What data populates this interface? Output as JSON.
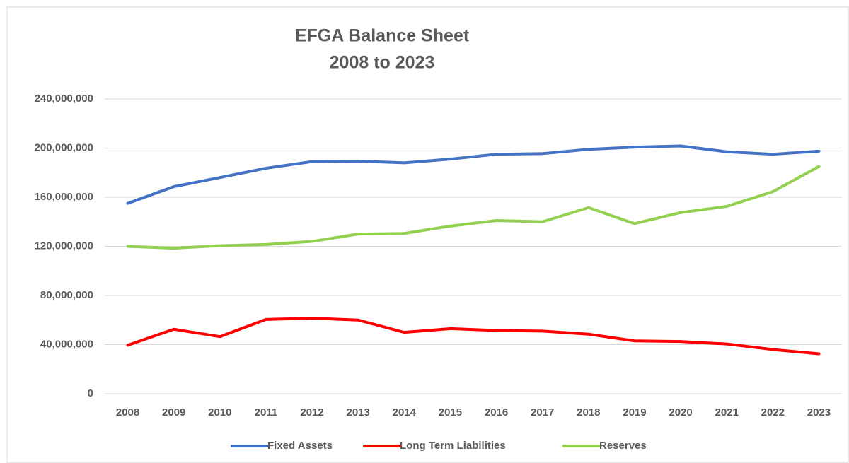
{
  "chart_data": {
    "type": "line",
    "title": "EFGA Balance Sheet",
    "subtitle": "2008 to 2023",
    "categories": [
      "2008",
      "2009",
      "2010",
      "2011",
      "2012",
      "2013",
      "2014",
      "2015",
      "2016",
      "2017",
      "2018",
      "2019",
      "2020",
      "2021",
      "2022",
      "2023"
    ],
    "series": [
      {
        "name": "Fixed Assets",
        "color": "#4472c4",
        "values": [
          155000000,
          168600000,
          176000000,
          183600000,
          189000000,
          189400000,
          188000000,
          191000000,
          195000000,
          195500000,
          199000000,
          200800000,
          201700000,
          197000000,
          195000000,
          197500000
        ]
      },
      {
        "name": "Long Term Liabilities",
        "color": "#ff0000",
        "values": [
          39500000,
          52500000,
          46500000,
          60500000,
          61500000,
          60000000,
          50000000,
          53000000,
          51500000,
          51000000,
          48500000,
          43000000,
          42500000,
          40500000,
          36000000,
          32500000
        ]
      },
      {
        "name": "Reserves",
        "color": "#92d050",
        "values": [
          120000000,
          118500000,
          120500000,
          121500000,
          124000000,
          130000000,
          130500000,
          136500000,
          141000000,
          140000000,
          151500000,
          138500000,
          147500000,
          152500000,
          164500000,
          185000000
        ]
      }
    ],
    "ylim": [
      0,
      240000000
    ],
    "yticks": [
      0,
      {
        "value": 40000000,
        "label": "40,000,000"
      },
      {
        "value": 80000000,
        "label": "80,000,000"
      },
      {
        "value": 120000000,
        "label": "120,000,000"
      },
      {
        "value": 160000000,
        "label": "160,000,000"
      },
      {
        "value": 200000000,
        "label": "200,000,000"
      },
      {
        "value": 240000000,
        "label": "240,000,000"
      }
    ],
    "grid": true,
    "legend": "bottom"
  }
}
